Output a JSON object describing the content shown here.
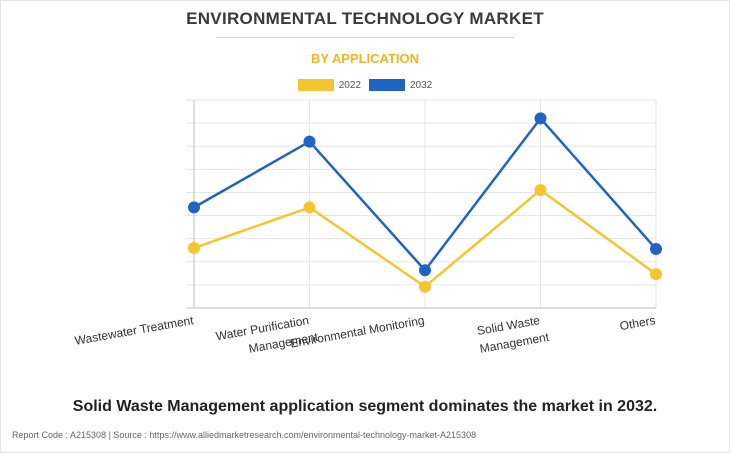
{
  "chart_title": "ENVIRONMENTAL TECHNOLOGY MARKET",
  "chart_subtitle": "BY APPLICATION",
  "headline": "Solid Waste Management application segment dominates the market in 2032.",
  "footer": "Report Code : A215308  |  Source : https://www.alliedmarketresearch.com/environmental-technology-market-A215308",
  "colors": {
    "series_2022": "#f5c52f",
    "series_2032": "#1f64c4",
    "subtitle": "#f5b323"
  },
  "chart_data": {
    "type": "line",
    "categories": [
      "Wastewater Treatment",
      "Water Purification Management",
      "Environmental Monitoring",
      "Solid Waste Management",
      "Others"
    ],
    "series": [
      {
        "name": "2022",
        "values": [
          62,
          104,
          22,
          122,
          35
        ]
      },
      {
        "name": "2032",
        "values": [
          104,
          172,
          39,
          196,
          61
        ]
      }
    ],
    "ylim": [
      0,
      215
    ],
    "grid": true,
    "legend": "top-center",
    "y_tick_labels_shown": false
  }
}
